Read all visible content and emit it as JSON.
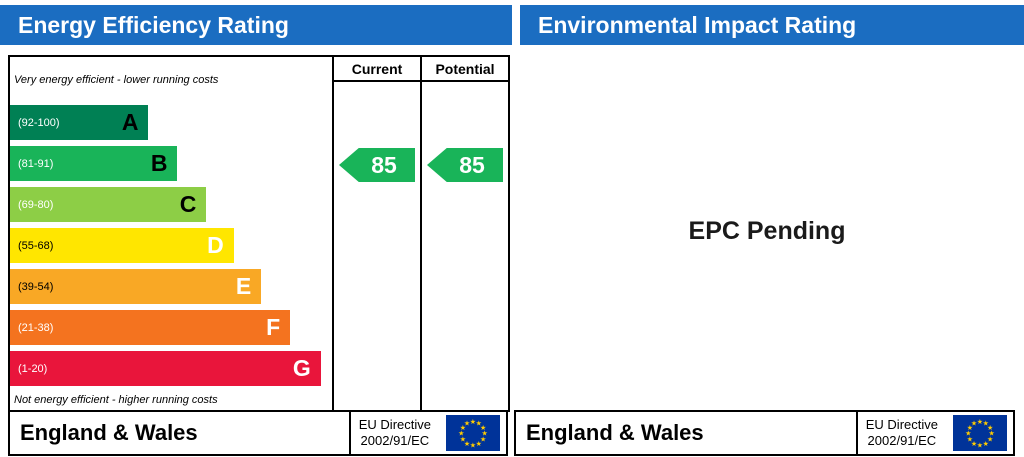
{
  "left_panel": {
    "title": "Energy Efficiency Rating",
    "columns": {
      "current": "Current",
      "potential": "Potential"
    },
    "top_note": "Very energy efficient - lower running costs",
    "bottom_note": "Not energy efficient - higher running costs",
    "footer": {
      "region": "England & Wales",
      "directive_line1": "EU Directive",
      "directive_line2": "2002/91/EC"
    }
  },
  "right_panel": {
    "title": "Environmental Impact Rating",
    "status": "EPC Pending",
    "footer": {
      "region": "England & Wales",
      "directive_line1": "EU Directive",
      "directive_line2": "2002/91/EC"
    }
  },
  "chart_data": {
    "type": "bar",
    "title": "Energy Efficiency Rating",
    "categories": [
      "A",
      "B",
      "C",
      "D",
      "E",
      "F",
      "G"
    ],
    "band_ranges": [
      "92-100",
      "81-91",
      "69-80",
      "55-68",
      "39-54",
      "21-38",
      "1-20"
    ],
    "bands": [
      {
        "letter": "A",
        "range": "(92-100)",
        "color": "#008054",
        "width_pct": 43,
        "range_text_color": "#ffffff",
        "letter_color": "#000000"
      },
      {
        "letter": "B",
        "range": "(81-91)",
        "color": "#19b459",
        "width_pct": 52,
        "range_text_color": "#ffffff",
        "letter_color": "#000000"
      },
      {
        "letter": "C",
        "range": "(69-80)",
        "color": "#8dce46",
        "width_pct": 61,
        "range_text_color": "#ffffff",
        "letter_color": "#000000"
      },
      {
        "letter": "D",
        "range": "(55-68)",
        "color": "#ffe600",
        "width_pct": 69.5,
        "range_text_color": "#000000",
        "letter_color": "#ffffff"
      },
      {
        "letter": "E",
        "range": "(39-54)",
        "color": "#f9a825",
        "width_pct": 78,
        "range_text_color": "#000000",
        "letter_color": "#ffffff"
      },
      {
        "letter": "F",
        "range": "(21-38)",
        "color": "#f4731f",
        "width_pct": 87,
        "range_text_color": "#ffffff",
        "letter_color": "#ffffff"
      },
      {
        "letter": "G",
        "range": "(1-20)",
        "color": "#e9153b",
        "width_pct": 96.5,
        "range_text_color": "#ffffff",
        "letter_color": "#ffffff"
      }
    ],
    "current_rating": 85,
    "potential_rating": 85,
    "rating_band": "B",
    "arrow_color": "#19b459",
    "legend_position": "none",
    "grid": false
  },
  "colors": {
    "header_blue": "#1b6dc1",
    "flag_blue": "#003399",
    "flag_star_yellow": "#ffcc00"
  }
}
